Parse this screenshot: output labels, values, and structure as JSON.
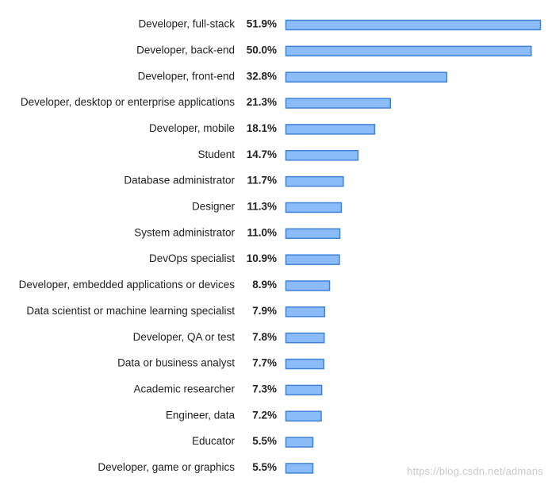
{
  "chart_data": {
    "type": "bar",
    "orientation": "horizontal",
    "title": "",
    "xlabel": "",
    "ylabel": "",
    "value_format": "percent",
    "xlim": [
      0,
      51.9
    ],
    "categories": [
      "Developer, full-stack",
      "Developer, back-end",
      "Developer, front-end",
      "Developer, desktop or enterprise applications",
      "Developer, mobile",
      "Student",
      "Database administrator",
      "Designer",
      "System administrator",
      "DevOps specialist",
      "Developer, embedded applications or devices",
      "Data scientist or machine learning specialist",
      "Developer, QA or test",
      "Data or business analyst",
      "Academic researcher",
      "Engineer, data",
      "Educator",
      "Developer, game or graphics"
    ],
    "values": [
      51.9,
      50.0,
      32.8,
      21.3,
      18.1,
      14.7,
      11.7,
      11.3,
      11.0,
      10.9,
      8.9,
      7.9,
      7.8,
      7.7,
      7.3,
      7.2,
      5.5,
      5.5
    ],
    "value_labels": [
      "51.9%",
      "50.0%",
      "32.8%",
      "21.3%",
      "18.1%",
      "14.7%",
      "11.7%",
      "11.3%",
      "11.0%",
      "10.9%",
      "8.9%",
      "7.9%",
      "7.8%",
      "7.7%",
      "7.3%",
      "7.2%",
      "5.5%",
      "5.5%"
    ],
    "colors": {
      "bar_fill": "#8cbcf8",
      "bar_stroke": "#3f82d8",
      "text": "#222222"
    }
  },
  "watermark": "https://blog.csdn.net/admans"
}
